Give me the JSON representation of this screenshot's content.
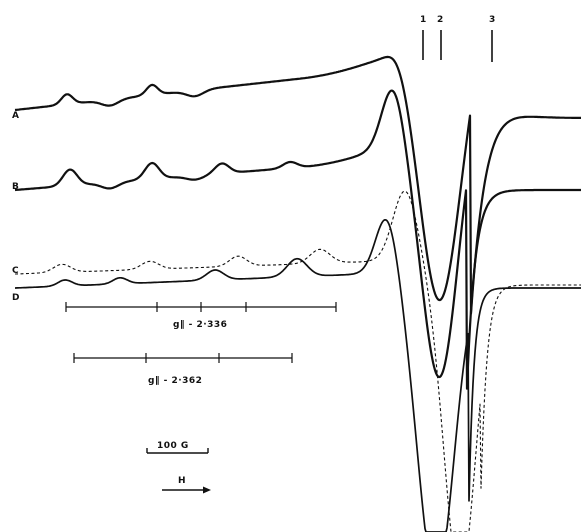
{
  "chart_data": {
    "type": "line",
    "title": "",
    "xlabel": "H",
    "ylabel": "",
    "grid": false,
    "traces": [
      {
        "name": "A",
        "style": "solid"
      },
      {
        "name": "B",
        "style": "solid"
      },
      {
        "name": "C",
        "style": "dashed"
      },
      {
        "name": "D",
        "style": "solid"
      }
    ],
    "markers": [
      "1",
      "2",
      "3"
    ],
    "hyperfine_patterns": [
      {
        "label": "g∥ - 2·336",
        "ticks": 5
      },
      {
        "label": "g∥ - 2·362",
        "ticks": 4
      }
    ],
    "scale_bar": {
      "label": "100 G",
      "gauss": 100
    },
    "field_direction": {
      "label": "H",
      "direction": "increasing-right"
    }
  },
  "colors": {
    "ink": "#111111",
    "background": "#ffffff"
  }
}
